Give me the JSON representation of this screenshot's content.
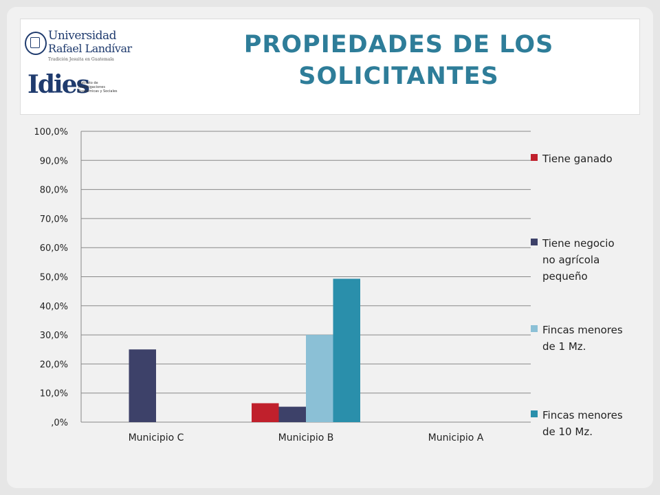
{
  "header": {
    "title_line1": "PROPIEDADES DE LOS",
    "title_line2": "SOLICITANTES",
    "logo_university_line1": "Universidad",
    "logo_university_line2": "Rafael Landívar",
    "logo_university_tagline": "Tradición Jesuita en Guatemala",
    "logo_idies": "Idies",
    "logo_idies_subtitle": "Instituto de Investigaciones Económicas y Sociales"
  },
  "chart_data": {
    "type": "bar",
    "categories": [
      "Municipio C",
      "Municipio B",
      "Municipio A"
    ],
    "series": [
      {
        "name": "Tiene ganado",
        "values": [
          0,
          6.5,
          0
        ],
        "color": "#c0202c"
      },
      {
        "name": "Tiene negocio no agrícola pequeño",
        "values": [
          25.0,
          5.3,
          0
        ],
        "color": "#3d4169"
      },
      {
        "name": "Fincas menores de 1 Mz.",
        "values": [
          0,
          30.0,
          0
        ],
        "color": "#8bc0d6"
      },
      {
        "name": "Fincas menores de 10 Mz.",
        "values": [
          0,
          49.3,
          0
        ],
        "color": "#2a8fab"
      }
    ],
    "legend_lines": [
      [
        "Tiene ganado"
      ],
      [
        "Tiene negocio",
        "no agrícola",
        "pequeño"
      ],
      [
        "Fincas menores",
        "de 1 Mz."
      ],
      [
        "Fincas menores",
        "de 10 Mz."
      ]
    ],
    "yticks": [
      ",0%",
      "10,0%",
      "20,0%",
      "30,0%",
      "40,0%",
      "50,0%",
      "60,0%",
      "70,0%",
      "80,0%",
      "90,0%",
      "100,0%"
    ],
    "ylim": [
      0,
      100
    ],
    "grid": true,
    "legend_position": "right",
    "title": "",
    "xlabel": "",
    "ylabel": ""
  }
}
